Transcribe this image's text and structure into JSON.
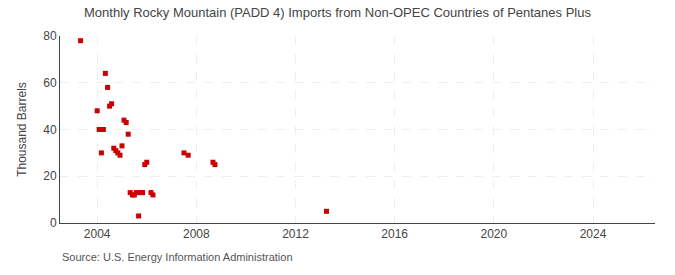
{
  "chart_data": {
    "type": "scatter",
    "title": "Monthly Rocky Mountain (PADD 4) Imports from Non-OPEC Countries of Pentanes Plus",
    "ylabel": "Thousand Barrels",
    "annotations": [
      "Source: U.S. Energy Information Administration"
    ],
    "x": [
      2003.33,
      2004.0,
      2004.08,
      2004.17,
      2004.25,
      2004.33,
      2004.42,
      2004.5,
      2004.58,
      2004.67,
      2004.75,
      2004.83,
      2004.92,
      2005.0,
      2005.08,
      2005.17,
      2005.25,
      2005.33,
      2005.42,
      2005.5,
      2005.58,
      2005.67,
      2005.75,
      2005.83,
      2005.92,
      2006.0,
      2006.17,
      2006.25,
      2007.5,
      2007.67,
      2008.67,
      2008.75,
      2013.25
    ],
    "values": [
      78,
      48,
      40,
      30,
      40,
      64,
      58,
      50,
      51,
      32,
      31,
      30,
      29,
      33,
      44,
      43,
      38,
      13,
      12,
      12,
      13,
      3,
      13,
      13,
      25,
      26,
      13,
      12,
      30,
      29,
      26,
      25,
      5
    ],
    "color": "#cc0000",
    "marker": "square",
    "xlim": [
      2002.5,
      2026.5
    ],
    "ylim": [
      0,
      80
    ],
    "xticks": [
      2004,
      2008,
      2012,
      2016,
      2020,
      2024
    ],
    "yticks": [
      0,
      20,
      40,
      60,
      80
    ],
    "grid": true
  }
}
